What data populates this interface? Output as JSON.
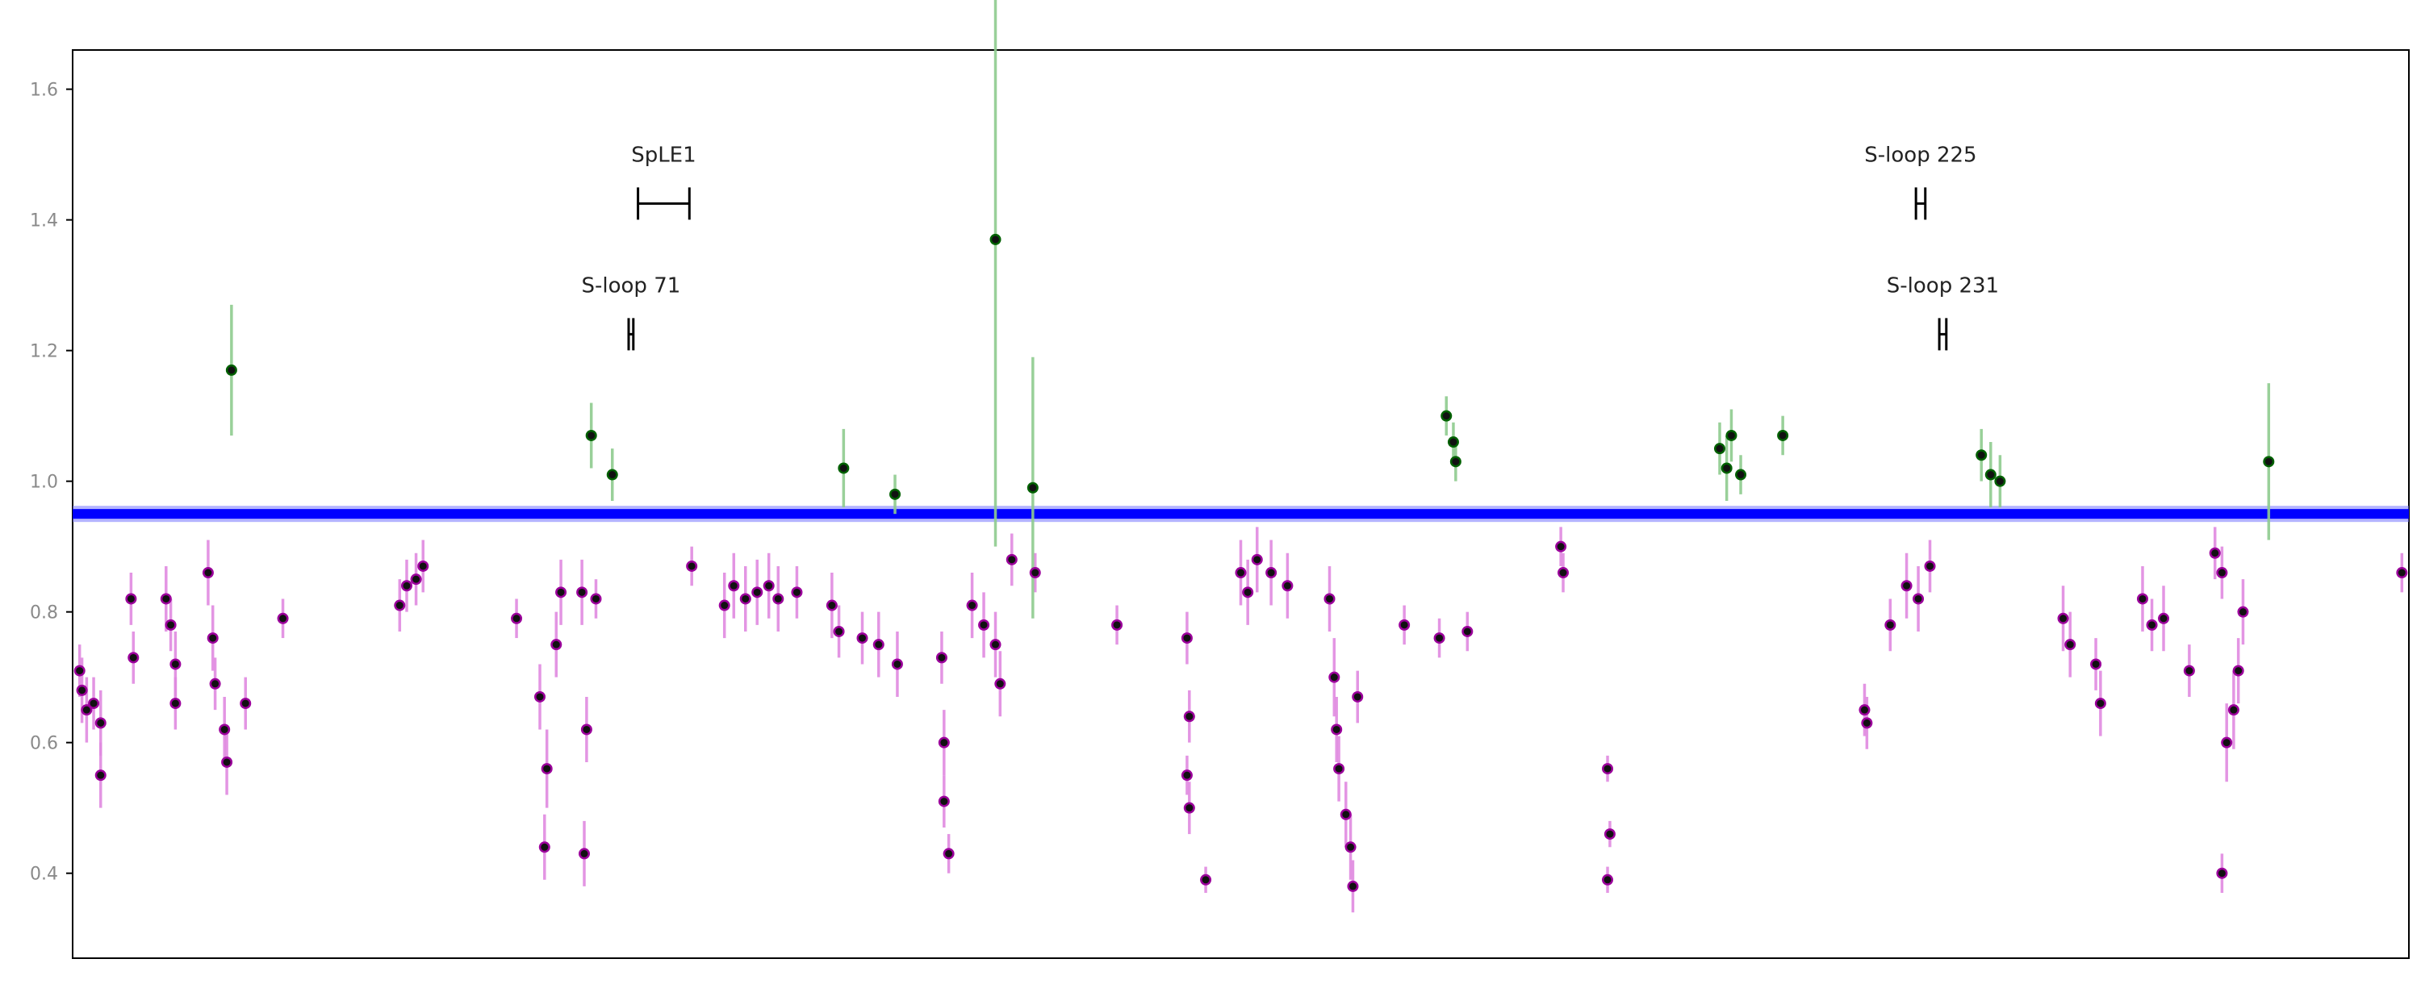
{
  "chart_data": {
    "type": "scatter",
    "title": "",
    "xlabel": "",
    "ylabel": "",
    "xlim": [
      0,
      1000
    ],
    "ylim": [
      0.27,
      1.66
    ],
    "grid": false,
    "legend": "none",
    "yticks": [
      {
        "value": 1.6,
        "label": "1.6"
      },
      {
        "value": 1.4,
        "label": "1.4"
      },
      {
        "value": 1.2,
        "label": "1.2"
      },
      {
        "value": 1.0,
        "label": "1.0"
      },
      {
        "value": 0.8,
        "label": "0.8"
      },
      {
        "value": 0.6,
        "label": "0.6"
      },
      {
        "value": 0.4,
        "label": "0.4"
      }
    ],
    "colors": {
      "baseline": "#0000ff",
      "baseline_error": "#7777ff",
      "low": "#9b009b",
      "low_error": "#e08ae0",
      "high": "#006000",
      "high_error": "#8fcc8f",
      "marker": "#111111"
    },
    "baseline_level": 0.95,
    "annotations": [
      {
        "label": "SpLE1",
        "x_start": 242,
        "x_end": 264,
        "y": 1.425,
        "label_y": 1.5
      },
      {
        "label": "S-loop 71",
        "x_start": 238,
        "x_end": 240,
        "y": 1.225,
        "label_y": 1.3
      },
      {
        "label": "S-loop 225",
        "x_start": 789,
        "x_end": 793,
        "y": 1.425,
        "label_y": 1.5
      },
      {
        "label": "S-loop 231",
        "x_start": 799,
        "x_end": 802,
        "y": 1.225,
        "label_y": 1.3
      }
    ],
    "series": [
      {
        "kind": "low",
        "points": [
          {
            "x": 3,
            "y": 0.71,
            "err": 0.04
          },
          {
            "x": 4,
            "y": 0.68,
            "err": 0.05
          },
          {
            "x": 6,
            "y": 0.65,
            "err": 0.05
          },
          {
            "x": 9,
            "y": 0.66,
            "err": 0.04
          },
          {
            "x": 12,
            "y": 0.63,
            "err": 0.05
          },
          {
            "x": 12,
            "y": 0.55,
            "err": 0.05
          },
          {
            "x": 25,
            "y": 0.82,
            "err": 0.04
          },
          {
            "x": 26,
            "y": 0.73,
            "err": 0.04
          },
          {
            "x": 40,
            "y": 0.82,
            "err": 0.05
          },
          {
            "x": 42,
            "y": 0.78,
            "err": 0.04
          },
          {
            "x": 44,
            "y": 0.72,
            "err": 0.05
          },
          {
            "x": 44,
            "y": 0.66,
            "err": 0.04
          },
          {
            "x": 58,
            "y": 0.86,
            "err": 0.05
          },
          {
            "x": 60,
            "y": 0.76,
            "err": 0.05
          },
          {
            "x": 61,
            "y": 0.69,
            "err": 0.04
          },
          {
            "x": 65,
            "y": 0.62,
            "err": 0.05
          },
          {
            "x": 66,
            "y": 0.57,
            "err": 0.05
          },
          {
            "x": 74,
            "y": 0.66,
            "err": 0.04
          },
          {
            "x": 90,
            "y": 0.79,
            "err": 0.03
          },
          {
            "x": 140,
            "y": 0.81,
            "err": 0.04
          },
          {
            "x": 143,
            "y": 0.84,
            "err": 0.04
          },
          {
            "x": 147,
            "y": 0.85,
            "err": 0.04
          },
          {
            "x": 150,
            "y": 0.87,
            "err": 0.04
          },
          {
            "x": 190,
            "y": 0.79,
            "err": 0.03
          },
          {
            "x": 200,
            "y": 0.67,
            "err": 0.05
          },
          {
            "x": 203,
            "y": 0.56,
            "err": 0.06
          },
          {
            "x": 202,
            "y": 0.44,
            "err": 0.05
          },
          {
            "x": 207,
            "y": 0.75,
            "err": 0.05
          },
          {
            "x": 209,
            "y": 0.83,
            "err": 0.05
          },
          {
            "x": 218,
            "y": 0.83,
            "err": 0.05
          },
          {
            "x": 220,
            "y": 0.62,
            "err": 0.05
          },
          {
            "x": 219,
            "y": 0.43,
            "err": 0.05
          },
          {
            "x": 224,
            "y": 0.82,
            "err": 0.03
          },
          {
            "x": 265,
            "y": 0.87,
            "err": 0.03
          },
          {
            "x": 279,
            "y": 0.81,
            "err": 0.05
          },
          {
            "x": 283,
            "y": 0.84,
            "err": 0.05
          },
          {
            "x": 288,
            "y": 0.82,
            "err": 0.05
          },
          {
            "x": 293,
            "y": 0.83,
            "err": 0.05
          },
          {
            "x": 298,
            "y": 0.84,
            "err": 0.05
          },
          {
            "x": 302,
            "y": 0.82,
            "err": 0.05
          },
          {
            "x": 310,
            "y": 0.83,
            "err": 0.04
          },
          {
            "x": 325,
            "y": 0.81,
            "err": 0.05
          },
          {
            "x": 328,
            "y": 0.77,
            "err": 0.04
          },
          {
            "x": 338,
            "y": 0.76,
            "err": 0.04
          },
          {
            "x": 345,
            "y": 0.75,
            "err": 0.05
          },
          {
            "x": 353,
            "y": 0.72,
            "err": 0.05
          },
          {
            "x": 372,
            "y": 0.73,
            "err": 0.04
          },
          {
            "x": 373,
            "y": 0.6,
            "err": 0.05
          },
          {
            "x": 373,
            "y": 0.51,
            "err": 0.04
          },
          {
            "x": 375,
            "y": 0.43,
            "err": 0.03
          },
          {
            "x": 385,
            "y": 0.81,
            "err": 0.05
          },
          {
            "x": 390,
            "y": 0.78,
            "err": 0.05
          },
          {
            "x": 395,
            "y": 0.75,
            "err": 0.05
          },
          {
            "x": 397,
            "y": 0.69,
            "err": 0.05
          },
          {
            "x": 402,
            "y": 0.88,
            "err": 0.04
          },
          {
            "x": 412,
            "y": 0.86,
            "err": 0.03
          },
          {
            "x": 447,
            "y": 0.78,
            "err": 0.03
          },
          {
            "x": 477,
            "y": 0.76,
            "err": 0.04
          },
          {
            "x": 478,
            "y": 0.64,
            "err": 0.04
          },
          {
            "x": 477,
            "y": 0.55,
            "err": 0.03
          },
          {
            "x": 478,
            "y": 0.5,
            "err": 0.04
          },
          {
            "x": 485,
            "y": 0.39,
            "err": 0.02
          },
          {
            "x": 500,
            "y": 0.86,
            "err": 0.05
          },
          {
            "x": 503,
            "y": 0.83,
            "err": 0.05
          },
          {
            "x": 507,
            "y": 0.88,
            "err": 0.05
          },
          {
            "x": 513,
            "y": 0.86,
            "err": 0.05
          },
          {
            "x": 520,
            "y": 0.84,
            "err": 0.05
          },
          {
            "x": 538,
            "y": 0.82,
            "err": 0.05
          },
          {
            "x": 540,
            "y": 0.7,
            "err": 0.06
          },
          {
            "x": 541,
            "y": 0.62,
            "err": 0.05
          },
          {
            "x": 542,
            "y": 0.56,
            "err": 0.05
          },
          {
            "x": 545,
            "y": 0.49,
            "err": 0.05
          },
          {
            "x": 547,
            "y": 0.44,
            "err": 0.05
          },
          {
            "x": 548,
            "y": 0.38,
            "err": 0.04
          },
          {
            "x": 550,
            "y": 0.67,
            "err": 0.04
          },
          {
            "x": 570,
            "y": 0.78,
            "err": 0.03
          },
          {
            "x": 585,
            "y": 0.76,
            "err": 0.03
          },
          {
            "x": 597,
            "y": 0.77,
            "err": 0.03
          },
          {
            "x": 637,
            "y": 0.9,
            "err": 0.03
          },
          {
            "x": 638,
            "y": 0.86,
            "err": 0.03
          },
          {
            "x": 657,
            "y": 0.56,
            "err": 0.02
          },
          {
            "x": 658,
            "y": 0.46,
            "err": 0.02
          },
          {
            "x": 657,
            "y": 0.39,
            "err": 0.02
          },
          {
            "x": 767,
            "y": 0.65,
            "err": 0.04
          },
          {
            "x": 768,
            "y": 0.63,
            "err": 0.04
          },
          {
            "x": 778,
            "y": 0.78,
            "err": 0.04
          },
          {
            "x": 785,
            "y": 0.84,
            "err": 0.05
          },
          {
            "x": 790,
            "y": 0.82,
            "err": 0.05
          },
          {
            "x": 795,
            "y": 0.87,
            "err": 0.04
          },
          {
            "x": 852,
            "y": 0.79,
            "err": 0.05
          },
          {
            "x": 855,
            "y": 0.75,
            "err": 0.05
          },
          {
            "x": 866,
            "y": 0.72,
            "err": 0.04
          },
          {
            "x": 868,
            "y": 0.66,
            "err": 0.05
          },
          {
            "x": 886,
            "y": 0.82,
            "err": 0.05
          },
          {
            "x": 890,
            "y": 0.78,
            "err": 0.04
          },
          {
            "x": 895,
            "y": 0.79,
            "err": 0.05
          },
          {
            "x": 906,
            "y": 0.71,
            "err": 0.04
          },
          {
            "x": 917,
            "y": 0.89,
            "err": 0.04
          },
          {
            "x": 920,
            "y": 0.86,
            "err": 0.04
          },
          {
            "x": 920,
            "y": 0.4,
            "err": 0.03
          },
          {
            "x": 922,
            "y": 0.6,
            "err": 0.06
          },
          {
            "x": 925,
            "y": 0.65,
            "err": 0.06
          },
          {
            "x": 927,
            "y": 0.71,
            "err": 0.05
          },
          {
            "x": 929,
            "y": 0.8,
            "err": 0.05
          },
          {
            "x": 997,
            "y": 0.86,
            "err": 0.03
          }
        ]
      },
      {
        "kind": "high",
        "points": [
          {
            "x": 68,
            "y": 1.17,
            "err": 0.1
          },
          {
            "x": 222,
            "y": 1.07,
            "err": 0.05
          },
          {
            "x": 231,
            "y": 1.01,
            "err": 0.04
          },
          {
            "x": 330,
            "y": 1.02,
            "err": 0.06
          },
          {
            "x": 352,
            "y": 0.98,
            "err": 0.03
          },
          {
            "x": 395,
            "y": 1.37,
            "err": 0.47
          },
          {
            "x": 411,
            "y": 0.99,
            "err": 0.2
          },
          {
            "x": 588,
            "y": 1.1,
            "err": 0.03
          },
          {
            "x": 591,
            "y": 1.06,
            "err": 0.03
          },
          {
            "x": 592,
            "y": 1.03,
            "err": 0.03
          },
          {
            "x": 705,
            "y": 1.05,
            "err": 0.04
          },
          {
            "x": 708,
            "y": 1.02,
            "err": 0.05
          },
          {
            "x": 710,
            "y": 1.07,
            "err": 0.04
          },
          {
            "x": 714,
            "y": 1.01,
            "err": 0.03
          },
          {
            "x": 732,
            "y": 1.07,
            "err": 0.03
          },
          {
            "x": 817,
            "y": 1.04,
            "err": 0.04
          },
          {
            "x": 821,
            "y": 1.01,
            "err": 0.05
          },
          {
            "x": 825,
            "y": 1.0,
            "err": 0.04
          },
          {
            "x": 940,
            "y": 1.03,
            "err": 0.12
          }
        ]
      }
    ]
  }
}
